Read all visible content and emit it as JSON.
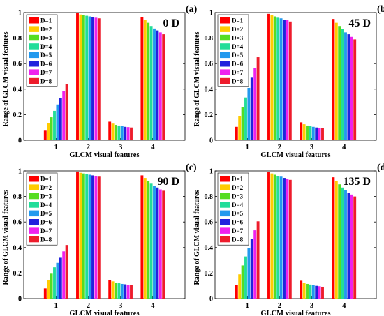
{
  "chart_data": [
    {
      "type": "bar",
      "panel_label": "(a)",
      "annotation": "0 D",
      "xlabel": "GLCM visual features",
      "ylabel": "Range of GLCM visual features",
      "categories": [
        "1",
        "2",
        "3",
        "4"
      ],
      "ylim": [
        0,
        1
      ],
      "yticks": [
        "0",
        "0.2",
        "0.4",
        "0.6",
        "0.8",
        "1"
      ],
      "grid": false,
      "legend_position": "top-left",
      "series": [
        {
          "name": "D=1",
          "values": [
            0.075,
            0.995,
            0.145,
            0.965
          ]
        },
        {
          "name": "D=2",
          "values": [
            0.135,
            0.985,
            0.13,
            0.945
          ]
        },
        {
          "name": "D=3",
          "values": [
            0.18,
            0.98,
            0.12,
            0.92
          ]
        },
        {
          "name": "D=4",
          "values": [
            0.23,
            0.975,
            0.115,
            0.895
          ]
        },
        {
          "name": "D=5",
          "values": [
            0.28,
            0.97,
            0.11,
            0.875
          ]
        },
        {
          "name": "D=6",
          "values": [
            0.33,
            0.965,
            0.105,
            0.86
          ]
        },
        {
          "name": "D=7",
          "values": [
            0.385,
            0.96,
            0.103,
            0.845
          ]
        },
        {
          "name": "D=8",
          "values": [
            0.44,
            0.955,
            0.1,
            0.83
          ]
        }
      ]
    },
    {
      "type": "bar",
      "panel_label": "(b)",
      "annotation": "45 D",
      "xlabel": "GLCM visual features",
      "ylabel": "Range of GLCM visual features",
      "categories": [
        "1",
        "2",
        "3",
        "4"
      ],
      "ylim": [
        0,
        1
      ],
      "yticks": [
        "0",
        "0.2",
        "0.4",
        "0.6",
        "0.8",
        "1"
      ],
      "grid": false,
      "legend_position": "top-left",
      "series": [
        {
          "name": "D=1",
          "values": [
            0.105,
            0.99,
            0.14,
            0.95
          ]
        },
        {
          "name": "D=2",
          "values": [
            0.19,
            0.98,
            0.125,
            0.92
          ]
        },
        {
          "name": "D=3",
          "values": [
            0.26,
            0.97,
            0.115,
            0.895
          ]
        },
        {
          "name": "D=4",
          "values": [
            0.335,
            0.96,
            0.11,
            0.87
          ]
        },
        {
          "name": "D=5",
          "values": [
            0.41,
            0.955,
            0.105,
            0.845
          ]
        },
        {
          "name": "D=6",
          "values": [
            0.49,
            0.945,
            0.1,
            0.83
          ]
        },
        {
          "name": "D=7",
          "values": [
            0.565,
            0.94,
            0.097,
            0.81
          ]
        },
        {
          "name": "D=8",
          "values": [
            0.65,
            0.93,
            0.093,
            0.79
          ]
        }
      ]
    },
    {
      "type": "bar",
      "panel_label": "(c)",
      "annotation": "90 D",
      "xlabel": "GLCM visual features",
      "ylabel": "Range of GLCM visual features",
      "categories": [
        "1",
        "2",
        "3",
        "4"
      ],
      "ylim": [
        0,
        1
      ],
      "yticks": [
        "0",
        "0.2",
        "0.4",
        "0.6",
        "0.8",
        "1"
      ],
      "grid": false,
      "legend_position": "top-left",
      "series": [
        {
          "name": "D=1",
          "values": [
            0.08,
            0.995,
            0.145,
            0.965
          ]
        },
        {
          "name": "D=2",
          "values": [
            0.145,
            0.985,
            0.135,
            0.945
          ]
        },
        {
          "name": "D=3",
          "values": [
            0.195,
            0.98,
            0.125,
            0.92
          ]
        },
        {
          "name": "D=4",
          "values": [
            0.245,
            0.975,
            0.12,
            0.9
          ]
        },
        {
          "name": "D=5",
          "values": [
            0.28,
            0.97,
            0.115,
            0.885
          ]
        },
        {
          "name": "D=6",
          "values": [
            0.32,
            0.965,
            0.112,
            0.87
          ]
        },
        {
          "name": "D=7",
          "values": [
            0.37,
            0.96,
            0.108,
            0.855
          ]
        },
        {
          "name": "D=8",
          "values": [
            0.42,
            0.955,
            0.105,
            0.845
          ]
        }
      ]
    },
    {
      "type": "bar",
      "panel_label": "(d)",
      "annotation": "135 D",
      "xlabel": "GLCM visual features",
      "ylabel": "Range of GLCM visual features",
      "categories": [
        "1",
        "2",
        "3",
        "4"
      ],
      "ylim": [
        0,
        1
      ],
      "yticks": [
        "0",
        "0.2",
        "0.4",
        "0.6",
        "0.8",
        "1"
      ],
      "grid": false,
      "legend_position": "top-left",
      "series": [
        {
          "name": "D=1",
          "values": [
            0.105,
            0.99,
            0.14,
            0.95
          ]
        },
        {
          "name": "D=2",
          "values": [
            0.19,
            0.98,
            0.125,
            0.92
          ]
        },
        {
          "name": "D=3",
          "values": [
            0.26,
            0.97,
            0.115,
            0.895
          ]
        },
        {
          "name": "D=4",
          "values": [
            0.33,
            0.96,
            0.11,
            0.87
          ]
        },
        {
          "name": "D=5",
          "values": [
            0.395,
            0.955,
            0.105,
            0.85
          ]
        },
        {
          "name": "D=6",
          "values": [
            0.465,
            0.945,
            0.1,
            0.83
          ]
        },
        {
          "name": "D=7",
          "values": [
            0.535,
            0.94,
            0.097,
            0.815
          ]
        },
        {
          "name": "D=8",
          "values": [
            0.605,
            0.93,
            0.093,
            0.8
          ]
        }
      ]
    }
  ],
  "series_colors": [
    "#ff0000",
    "#ffcc00",
    "#55dd22",
    "#22dd99",
    "#2299ee",
    "#2222dd",
    "#ee22ee",
    "#ee1c2c"
  ]
}
